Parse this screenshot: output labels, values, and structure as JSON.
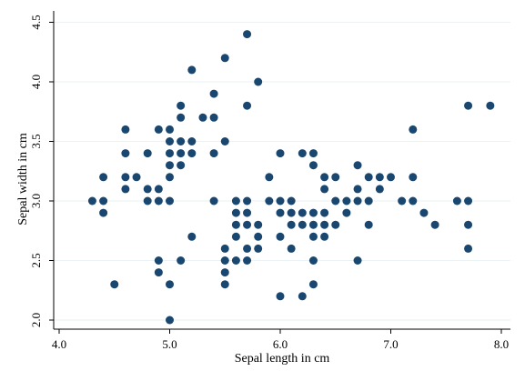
{
  "chart_data": {
    "type": "scatter",
    "title": "",
    "xlabel": "Sepal length in cm",
    "ylabel": "Sepal width in cm",
    "xlim": [
      4.0,
      8.0
    ],
    "ylim": [
      2.0,
      4.5
    ],
    "xticks": [
      "4.0",
      "5.0",
      "6.0",
      "7.0",
      "8.0"
    ],
    "yticks": [
      "2.0",
      "2.5",
      "3.0",
      "3.5",
      "4.0",
      "4.5"
    ],
    "grid": "horizontal",
    "colors": {
      "marker": "#1a476f",
      "grid": "#eaf2f3",
      "axis": "#000000"
    },
    "series": [
      {
        "points": [
          [
            4.3,
            3.0
          ],
          [
            4.4,
            2.9
          ],
          [
            4.4,
            3.0
          ],
          [
            4.4,
            3.2
          ],
          [
            4.5,
            2.3
          ],
          [
            4.6,
            3.1
          ],
          [
            4.6,
            3.2
          ],
          [
            4.6,
            3.4
          ],
          [
            4.6,
            3.6
          ],
          [
            4.7,
            3.2
          ],
          [
            4.8,
            3.0
          ],
          [
            4.8,
            3.1
          ],
          [
            4.8,
            3.4
          ],
          [
            4.9,
            2.4
          ],
          [
            4.9,
            2.5
          ],
          [
            4.9,
            3.0
          ],
          [
            4.9,
            3.1
          ],
          [
            4.9,
            3.6
          ],
          [
            5.0,
            2.0
          ],
          [
            5.0,
            2.3
          ],
          [
            5.0,
            3.0
          ],
          [
            5.0,
            3.2
          ],
          [
            5.0,
            3.3
          ],
          [
            5.0,
            3.4
          ],
          [
            5.0,
            3.5
          ],
          [
            5.0,
            3.6
          ],
          [
            5.1,
            2.5
          ],
          [
            5.1,
            3.3
          ],
          [
            5.1,
            3.4
          ],
          [
            5.1,
            3.5
          ],
          [
            5.1,
            3.7
          ],
          [
            5.1,
            3.8
          ],
          [
            5.2,
            2.7
          ],
          [
            5.2,
            3.4
          ],
          [
            5.2,
            3.5
          ],
          [
            5.2,
            4.1
          ],
          [
            5.3,
            3.7
          ],
          [
            5.4,
            3.0
          ],
          [
            5.4,
            3.4
          ],
          [
            5.4,
            3.7
          ],
          [
            5.4,
            3.9
          ],
          [
            5.5,
            2.3
          ],
          [
            5.5,
            2.4
          ],
          [
            5.5,
            2.5
          ],
          [
            5.5,
            2.6
          ],
          [
            5.5,
            3.5
          ],
          [
            5.5,
            4.2
          ],
          [
            5.6,
            2.5
          ],
          [
            5.6,
            2.7
          ],
          [
            5.6,
            2.8
          ],
          [
            5.6,
            2.9
          ],
          [
            5.6,
            3.0
          ],
          [
            5.7,
            2.5
          ],
          [
            5.7,
            2.6
          ],
          [
            5.7,
            2.8
          ],
          [
            5.7,
            2.9
          ],
          [
            5.7,
            3.0
          ],
          [
            5.7,
            3.8
          ],
          [
            5.7,
            4.4
          ],
          [
            5.8,
            2.6
          ],
          [
            5.8,
            2.7
          ],
          [
            5.8,
            2.8
          ],
          [
            5.8,
            4.0
          ],
          [
            5.9,
            3.0
          ],
          [
            5.9,
            3.2
          ],
          [
            6.0,
            2.2
          ],
          [
            6.0,
            2.7
          ],
          [
            6.0,
            2.9
          ],
          [
            6.0,
            3.0
          ],
          [
            6.0,
            3.4
          ],
          [
            6.1,
            2.6
          ],
          [
            6.1,
            2.8
          ],
          [
            6.1,
            2.9
          ],
          [
            6.1,
            3.0
          ],
          [
            6.2,
            2.2
          ],
          [
            6.2,
            2.8
          ],
          [
            6.2,
            2.9
          ],
          [
            6.2,
            3.4
          ],
          [
            6.3,
            2.3
          ],
          [
            6.3,
            2.5
          ],
          [
            6.3,
            2.7
          ],
          [
            6.3,
            2.8
          ],
          [
            6.3,
            2.9
          ],
          [
            6.3,
            3.3
          ],
          [
            6.3,
            3.4
          ],
          [
            6.4,
            2.7
          ],
          [
            6.4,
            2.8
          ],
          [
            6.4,
            2.9
          ],
          [
            6.4,
            3.1
          ],
          [
            6.4,
            3.2
          ],
          [
            6.5,
            2.8
          ],
          [
            6.5,
            3.0
          ],
          [
            6.5,
            3.2
          ],
          [
            6.6,
            2.9
          ],
          [
            6.6,
            3.0
          ],
          [
            6.7,
            2.5
          ],
          [
            6.7,
            3.0
          ],
          [
            6.7,
            3.1
          ],
          [
            6.7,
            3.3
          ],
          [
            6.8,
            2.8
          ],
          [
            6.8,
            3.0
          ],
          [
            6.8,
            3.2
          ],
          [
            6.9,
            3.1
          ],
          [
            6.9,
            3.2
          ],
          [
            7.0,
            3.2
          ],
          [
            7.1,
            3.0
          ],
          [
            7.2,
            3.0
          ],
          [
            7.2,
            3.2
          ],
          [
            7.2,
            3.6
          ],
          [
            7.3,
            2.9
          ],
          [
            7.4,
            2.8
          ],
          [
            7.6,
            3.0
          ],
          [
            7.7,
            2.6
          ],
          [
            7.7,
            2.8
          ],
          [
            7.7,
            3.0
          ],
          [
            7.7,
            3.8
          ],
          [
            7.9,
            3.8
          ]
        ]
      }
    ]
  }
}
